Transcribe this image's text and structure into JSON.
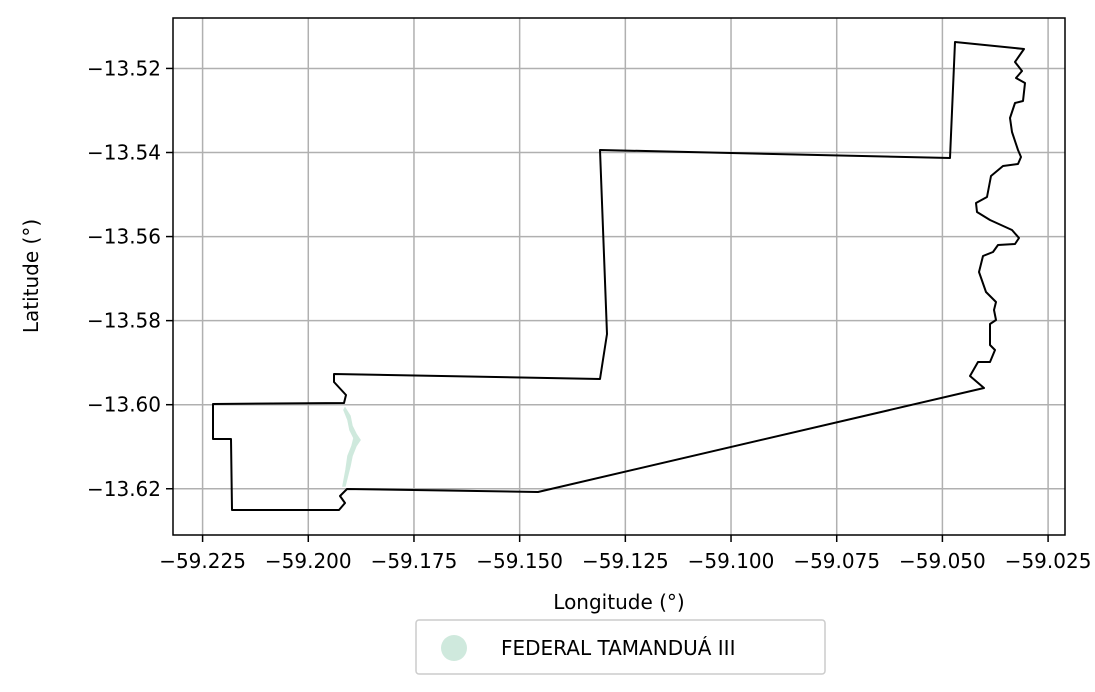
{
  "chart_data": {
    "type": "map",
    "xlabel": "Longitude (°)",
    "ylabel": "Latitude (°)",
    "xlim": [
      -59.232,
      -59.021
    ],
    "ylim": [
      -13.631,
      -13.508
    ],
    "grid": true,
    "legend_position": "bottom-center, below plot",
    "x_ticks": [
      {
        "value": -59.225,
        "label": "−59.225"
      },
      {
        "value": -59.2,
        "label": "−59.200"
      },
      {
        "value": -59.175,
        "label": "−59.175"
      },
      {
        "value": -59.15,
        "label": "−59.150"
      },
      {
        "value": -59.125,
        "label": "−59.125"
      },
      {
        "value": -59.1,
        "label": "−59.100"
      },
      {
        "value": -59.075,
        "label": "−59.075"
      },
      {
        "value": -59.05,
        "label": "−59.050"
      },
      {
        "value": -59.025,
        "label": "−59.025"
      }
    ],
    "y_ticks": [
      {
        "value": -13.52,
        "label": "−13.52"
      },
      {
        "value": -13.54,
        "label": "−13.54"
      },
      {
        "value": -13.56,
        "label": "−13.56"
      },
      {
        "value": -13.58,
        "label": "−13.58"
      },
      {
        "value": -13.6,
        "label": "−13.60"
      },
      {
        "value": -13.62,
        "label": "−13.62"
      }
    ],
    "boundary_color": "#000000",
    "series": [
      {
        "name": "FEDERAL TAMANDUÁ III",
        "color": "#cfe9dd"
      }
    ]
  }
}
